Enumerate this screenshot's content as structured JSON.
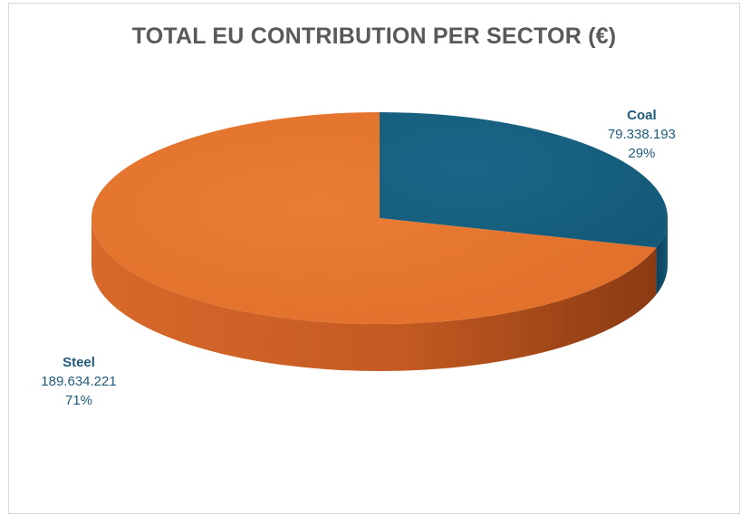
{
  "chart_data": {
    "type": "pie",
    "title": "TOTAL EU CONTRIBUTION PER SECTOR (€)",
    "three_d": true,
    "legend": "none",
    "categories": [
      "Coal",
      "Steel"
    ],
    "values": [
      79338193,
      189634221
    ],
    "value_labels": [
      "79.338.193",
      "189.634.221"
    ],
    "percent_labels": [
      "29%",
      "71%"
    ],
    "colors": [
      "#17607f",
      "#e87a33"
    ],
    "side_colors": [
      "#0f4a63",
      "#c2602a"
    ]
  }
}
